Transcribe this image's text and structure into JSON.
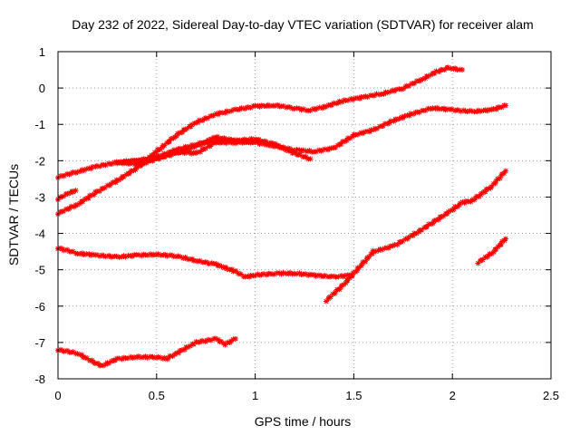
{
  "chart_data": {
    "type": "scatter",
    "title": "Day 232 of 2022, Sidereal Day-to-day VTEC variation (SDTVAR) for receiver alam",
    "xlabel": "GPS time / hours",
    "ylabel": "SDTVAR / TECUs",
    "xlim": [
      0,
      2.5
    ],
    "ylim": [
      -8,
      1
    ],
    "x_ticks": [
      "0",
      "0.5",
      "1",
      "1.5",
      "2",
      "2.5"
    ],
    "y_ticks": [
      "1",
      "0",
      "-1",
      "-2",
      "-3",
      "-4",
      "-5",
      "-6",
      "-7",
      "-8"
    ],
    "grid": true,
    "marker": "plus-cross",
    "series_color": "#ff0000",
    "series": [
      {
        "name": "trace-1",
        "points": [
          [
            0.0,
            -3.05
          ],
          [
            0.05,
            -2.9
          ],
          [
            0.09,
            -2.82
          ]
        ]
      },
      {
        "name": "trace-2",
        "points": [
          [
            0.0,
            -3.45
          ],
          [
            0.1,
            -3.2
          ],
          [
            0.2,
            -2.85
          ],
          [
            0.3,
            -2.55
          ],
          [
            0.4,
            -2.2
          ],
          [
            0.5,
            -1.75
          ],
          [
            0.6,
            -1.3
          ],
          [
            0.7,
            -0.95
          ],
          [
            0.8,
            -0.72
          ],
          [
            0.9,
            -0.6
          ],
          [
            1.0,
            -0.5
          ],
          [
            1.1,
            -0.48
          ],
          [
            1.2,
            -0.55
          ],
          [
            1.27,
            -0.62
          ],
          [
            1.35,
            -0.52
          ],
          [
            1.45,
            -0.35
          ],
          [
            1.55,
            -0.25
          ],
          [
            1.65,
            -0.15
          ],
          [
            1.75,
            0.0
          ],
          [
            1.85,
            0.25
          ],
          [
            1.92,
            0.45
          ],
          [
            1.98,
            0.55
          ],
          [
            2.05,
            0.5
          ]
        ]
      },
      {
        "name": "trace-3",
        "points": [
          [
            0.0,
            -2.45
          ],
          [
            0.1,
            -2.3
          ],
          [
            0.2,
            -2.15
          ],
          [
            0.3,
            -2.05
          ],
          [
            0.4,
            -2.0
          ],
          [
            0.5,
            -1.9
          ],
          [
            0.6,
            -1.7
          ],
          [
            0.7,
            -1.55
          ],
          [
            0.8,
            -1.45
          ],
          [
            0.9,
            -1.45
          ],
          [
            1.0,
            -1.5
          ],
          [
            1.1,
            -1.6
          ],
          [
            1.2,
            -1.7
          ],
          [
            1.3,
            -1.75
          ],
          [
            1.4,
            -1.65
          ],
          [
            1.5,
            -1.3
          ],
          [
            1.6,
            -1.15
          ],
          [
            1.7,
            -0.9
          ],
          [
            1.8,
            -0.7
          ],
          [
            1.9,
            -0.55
          ],
          [
            2.0,
            -0.6
          ],
          [
            2.1,
            -0.65
          ],
          [
            2.2,
            -0.6
          ],
          [
            2.27,
            -0.48
          ]
        ]
      },
      {
        "name": "trace-4",
        "points": [
          [
            0.3,
            -2.05
          ],
          [
            0.4,
            -2.0
          ],
          [
            0.5,
            -1.95
          ],
          [
            0.6,
            -1.8
          ],
          [
            0.7,
            -1.6
          ],
          [
            0.8,
            -1.35
          ],
          [
            0.9,
            -1.45
          ],
          [
            1.0,
            -1.4
          ],
          [
            1.1,
            -1.55
          ],
          [
            1.2,
            -1.8
          ],
          [
            1.28,
            -1.95
          ]
        ]
      },
      {
        "name": "trace-5",
        "points": [
          [
            0.3,
            -2.05
          ],
          [
            0.42,
            -2.1
          ],
          [
            0.5,
            -1.95
          ],
          [
            0.6,
            -1.75
          ],
          [
            0.7,
            -1.8
          ],
          [
            0.8,
            -1.5
          ],
          [
            0.9,
            -1.5
          ],
          [
            1.0,
            -1.48
          ]
        ]
      },
      {
        "name": "trace-6",
        "points": [
          [
            0.0,
            -4.4
          ],
          [
            0.1,
            -4.55
          ],
          [
            0.2,
            -4.6
          ],
          [
            0.3,
            -4.65
          ],
          [
            0.4,
            -4.6
          ],
          [
            0.5,
            -4.58
          ],
          [
            0.6,
            -4.62
          ],
          [
            0.7,
            -4.75
          ],
          [
            0.8,
            -4.85
          ],
          [
            0.9,
            -5.05
          ],
          [
            0.95,
            -5.2
          ],
          [
            1.0,
            -5.15
          ],
          [
            1.1,
            -5.1
          ],
          [
            1.2,
            -5.1
          ],
          [
            1.3,
            -5.15
          ],
          [
            1.4,
            -5.2
          ],
          [
            1.48,
            -5.15
          ]
        ]
      },
      {
        "name": "trace-7",
        "points": [
          [
            1.36,
            -5.85
          ],
          [
            1.45,
            -5.4
          ],
          [
            1.55,
            -4.8
          ],
          [
            1.6,
            -4.5
          ],
          [
            1.7,
            -4.35
          ],
          [
            1.8,
            -4.05
          ],
          [
            1.9,
            -3.7
          ],
          [
            2.0,
            -3.35
          ],
          [
            2.05,
            -3.15
          ],
          [
            2.1,
            -3.1
          ],
          [
            2.15,
            -2.9
          ],
          [
            2.2,
            -2.7
          ],
          [
            2.27,
            -2.28
          ]
        ]
      },
      {
        "name": "trace-8",
        "points": [
          [
            2.13,
            -4.8
          ],
          [
            2.2,
            -4.55
          ],
          [
            2.27,
            -4.15
          ]
        ]
      },
      {
        "name": "trace-9",
        "points": [
          [
            0.0,
            -7.2
          ],
          [
            0.1,
            -7.3
          ],
          [
            0.15,
            -7.45
          ],
          [
            0.22,
            -7.65
          ],
          [
            0.3,
            -7.45
          ],
          [
            0.4,
            -7.4
          ],
          [
            0.5,
            -7.4
          ],
          [
            0.55,
            -7.45
          ],
          [
            0.6,
            -7.3
          ],
          [
            0.7,
            -7.0
          ],
          [
            0.8,
            -6.9
          ],
          [
            0.85,
            -7.05
          ],
          [
            0.9,
            -6.9
          ]
        ]
      }
    ]
  }
}
